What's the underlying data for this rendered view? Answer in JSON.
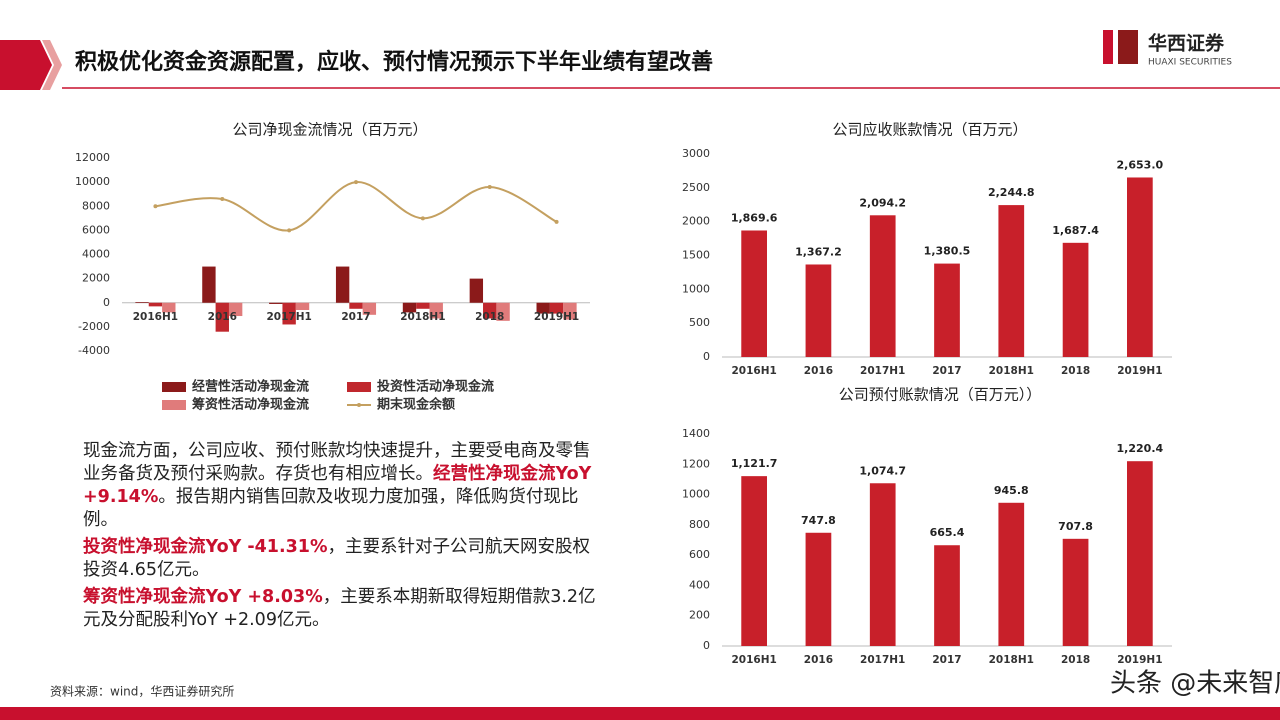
{
  "header": {
    "title": "积极优化资金资源配置，应收、预付情况预示下半年业绩有望改善",
    "logo_name": "华西证券",
    "logo_sub": "HUAXI SECURITIES"
  },
  "chart_data": [
    {
      "type": "combo",
      "title": "公司净现金流情况（百万元）",
      "categories": [
        "2016H1",
        "2016",
        "2017H1",
        "2017",
        "2018H1",
        "2018",
        "2019H1"
      ],
      "series": [
        {
          "name": "经营性活动净现金流",
          "type": "bar",
          "color": "#8b1a1a",
          "values": [
            60,
            3000,
            -100,
            3000,
            -800,
            2000,
            -900
          ]
        },
        {
          "name": "投资性活动净现金流",
          "type": "bar",
          "color": "#c0272d",
          "values": [
            -300,
            -2400,
            -1800,
            -500,
            -500,
            -1300,
            -900
          ]
        },
        {
          "name": "筹资性活动净现金流",
          "type": "bar",
          "color": "#e07b7b",
          "values": [
            -800,
            -1100,
            -600,
            -1000,
            -1300,
            -1500,
            -1400
          ]
        },
        {
          "name": "期末现金余额",
          "type": "line",
          "color": "#c4a060",
          "values": [
            8000,
            8600,
            6000,
            10000,
            7000,
            9600,
            6700
          ]
        }
      ],
      "ylim": [
        -4000,
        12000
      ],
      "yticks": [
        -4000,
        -2000,
        0,
        2000,
        4000,
        6000,
        8000,
        10000,
        12000
      ],
      "grid": false,
      "legend": "bottom"
    },
    {
      "type": "bar",
      "title": "公司应收账款情况（百万元）",
      "categories": [
        "2016H1",
        "2016",
        "2017H1",
        "2017",
        "2018H1",
        "2018",
        "2019H1"
      ],
      "values": [
        1869.6,
        1367.2,
        2094.2,
        1380.5,
        2244.8,
        1687.4,
        2653.0
      ],
      "value_labels": [
        "1,869.6",
        "1,367.2",
        "2,094.2",
        "1,380.5",
        "2,244.8",
        "1,687.4",
        "2,653.0"
      ],
      "color": "#c8202a",
      "ylim": [
        0,
        3000
      ],
      "yticks": [
        0,
        500,
        1000,
        1500,
        2000,
        2500,
        3000
      ],
      "grid": false
    },
    {
      "type": "bar",
      "title": "公司预付账款情况（百万元））",
      "categories": [
        "2016H1",
        "2016",
        "2017H1",
        "2017",
        "2018H1",
        "2018",
        "2019H1"
      ],
      "values": [
        1121.7,
        747.8,
        1074.7,
        665.4,
        945.8,
        707.8,
        1220.4
      ],
      "value_labels": [
        "1,121.7",
        "747.8",
        "1,074.7",
        "665.4",
        "945.8",
        "707.8",
        "1,220.4"
      ],
      "color": "#c8202a",
      "ylim": [
        0,
        1400
      ],
      "yticks": [
        0,
        200,
        400,
        600,
        800,
        1000,
        1200,
        1400
      ],
      "grid": false
    }
  ],
  "body": {
    "paragraphs": [
      {
        "runs": [
          {
            "text": "现金流方面，公司应收、预付账款均快速提升，主要受电商及零售业务备货及预付采购款。存货也有相应增长。",
            "emphasis": false
          },
          {
            "text": "经营性净现金流YoY +9.14%",
            "emphasis": true
          },
          {
            "text": "。报告期内销售回款及收现力度加强，降低购货付现比例。",
            "emphasis": false
          }
        ]
      },
      {
        "runs": [
          {
            "text": "投资性净现金流YoY -41.31%",
            "emphasis": true
          },
          {
            "text": "，主要系针对子公司航天网安股权投资4.65亿元。",
            "emphasis": false
          }
        ]
      },
      {
        "runs": [
          {
            "text": "筹资性净现金流YoY +8.03%",
            "emphasis": true
          },
          {
            "text": "，主要系本期新取得短期借款3.2亿元及分配股利YoY +2.09亿元。",
            "emphasis": false
          }
        ]
      }
    ]
  },
  "footer": {
    "source": "资料来源：wind，华西证券研究所",
    "watermark": "头条 @未来智库"
  }
}
